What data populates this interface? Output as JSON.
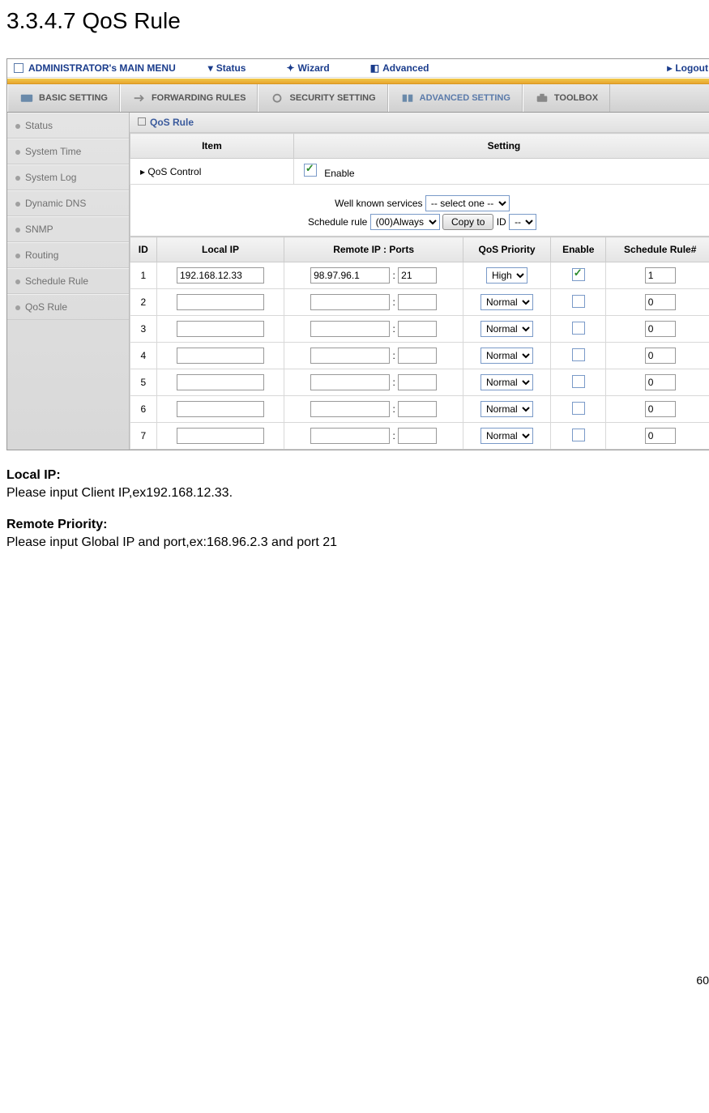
{
  "page": {
    "section_title": "3.3.4.7 QoS Rule",
    "page_number": "60"
  },
  "topbar": {
    "title": "ADMINISTRATOR's MAIN MENU",
    "items": [
      "Status",
      "Wizard",
      "Advanced"
    ],
    "logout": "Logout"
  },
  "tabs": [
    {
      "label": "BASIC SETTING"
    },
    {
      "label": "FORWARDING RULES"
    },
    {
      "label": "SECURITY SETTING"
    },
    {
      "label": "ADVANCED SETTING"
    },
    {
      "label": "TOOLBOX"
    }
  ],
  "sidebar": {
    "items": [
      "Status",
      "System Time",
      "System Log",
      "Dynamic DNS",
      "SNMP",
      "Routing",
      "Schedule Rule",
      "QoS Rule"
    ]
  },
  "panel": {
    "title": "QoS Rule",
    "header": {
      "item": "Item",
      "setting": "Setting"
    },
    "qos_control_label": "QoS Control",
    "enable_label": "Enable",
    "well_known_label": "Well known services",
    "well_known_value": "-- select one --",
    "schedule_rule_label": "Schedule rule",
    "schedule_rule_value": "(00)Always",
    "copy_label": "Copy to",
    "id_label": "ID",
    "id_value": "--"
  },
  "table": {
    "headers": [
      "ID",
      "Local IP",
      "Remote IP : Ports",
      "QoS Priority",
      "Enable",
      "Schedule Rule#"
    ],
    "rows": [
      {
        "id": "1",
        "local_ip": "192.168.12.33",
        "remote_ip": "98.97.96.1",
        "port": "21",
        "priority": "High",
        "enabled": true,
        "rule": "1"
      },
      {
        "id": "2",
        "local_ip": "",
        "remote_ip": "",
        "port": "",
        "priority": "Normal",
        "enabled": false,
        "rule": "0"
      },
      {
        "id": "3",
        "local_ip": "",
        "remote_ip": "",
        "port": "",
        "priority": "Normal",
        "enabled": false,
        "rule": "0"
      },
      {
        "id": "4",
        "local_ip": "",
        "remote_ip": "",
        "port": "",
        "priority": "Normal",
        "enabled": false,
        "rule": "0"
      },
      {
        "id": "5",
        "local_ip": "",
        "remote_ip": "",
        "port": "",
        "priority": "Normal",
        "enabled": false,
        "rule": "0"
      },
      {
        "id": "6",
        "local_ip": "",
        "remote_ip": "",
        "port": "",
        "priority": "Normal",
        "enabled": false,
        "rule": "0"
      },
      {
        "id": "7",
        "local_ip": "",
        "remote_ip": "",
        "port": "",
        "priority": "Normal",
        "enabled": false,
        "rule": "0"
      }
    ]
  },
  "desc": {
    "local_ip_title": "Local IP:",
    "local_ip_text": "Please input Client IP,ex192.168.12.33.",
    "remote_title": "Remote Priority:",
    "remote_text": "Please input Global IP and port,ex:168.96.2.3 and port 21"
  }
}
